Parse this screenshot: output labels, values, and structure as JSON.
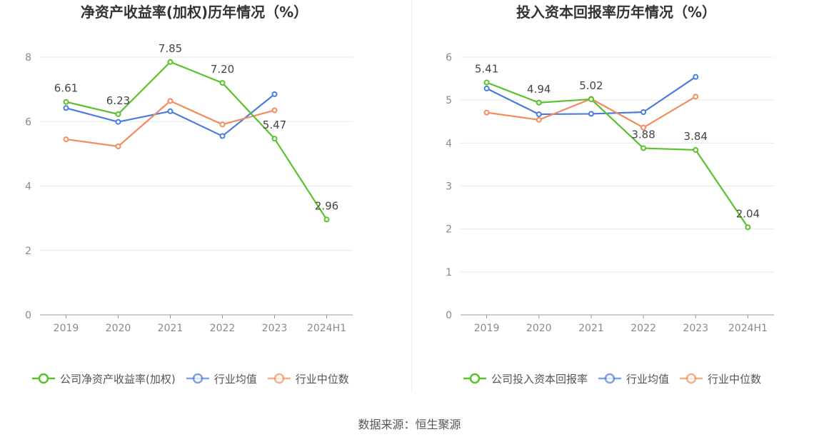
{
  "colors": {
    "company": "#5ac12d",
    "industry_avg": "#4a7be0",
    "industry_median": "#f38c5c",
    "grid": "#e6e8f2",
    "axis": "#999999"
  },
  "source": "数据来源：恒生聚源",
  "chart_data": [
    {
      "type": "line",
      "title": "净资产收益率(加权)历年情况（%）",
      "categories": [
        "2019",
        "2020",
        "2021",
        "2022",
        "2023",
        "2024H1"
      ],
      "ylim": [
        0,
        8
      ],
      "yticks": [
        "0",
        "2",
        "4",
        "6",
        "8"
      ],
      "grid": true,
      "legend_position": "bottom",
      "series": [
        {
          "name": "公司净资产收益率(加权)",
          "color_key": "company",
          "labeled": true,
          "values": [
            6.61,
            6.23,
            7.85,
            7.2,
            5.47,
            2.96
          ],
          "labels": [
            "6.61",
            "6.23",
            "7.85",
            "7.20",
            "5.47",
            "2.96"
          ]
        },
        {
          "name": "行业均值",
          "color_key": "industry_avg",
          "labeled": false,
          "values": [
            6.42,
            5.99,
            6.32,
            5.55,
            6.85,
            null
          ]
        },
        {
          "name": "行业中位数",
          "color_key": "industry_median",
          "labeled": false,
          "values": [
            5.45,
            5.23,
            6.64,
            5.91,
            6.35,
            null
          ]
        }
      ]
    },
    {
      "type": "line",
      "title": "投入资本回报率历年情况（%）",
      "categories": [
        "2019",
        "2020",
        "2021",
        "2022",
        "2023",
        "2024H1"
      ],
      "ylim": [
        0,
        6
      ],
      "yticks": [
        "0",
        "1",
        "2",
        "3",
        "4",
        "5",
        "6"
      ],
      "grid": true,
      "legend_position": "bottom",
      "series": [
        {
          "name": "公司投入资本回报率",
          "color_key": "company",
          "labeled": true,
          "values": [
            5.41,
            4.94,
            5.02,
            3.88,
            3.84,
            2.04
          ],
          "labels": [
            "5.41",
            "4.94",
            "5.02",
            "3.88",
            "3.84",
            "2.04"
          ]
        },
        {
          "name": "行业均值",
          "color_key": "industry_avg",
          "labeled": false,
          "values": [
            5.27,
            4.67,
            4.68,
            4.72,
            5.54,
            null
          ]
        },
        {
          "name": "行业中位数",
          "color_key": "industry_median",
          "labeled": false,
          "values": [
            4.71,
            4.54,
            5.03,
            4.36,
            5.08,
            null
          ]
        }
      ]
    }
  ]
}
